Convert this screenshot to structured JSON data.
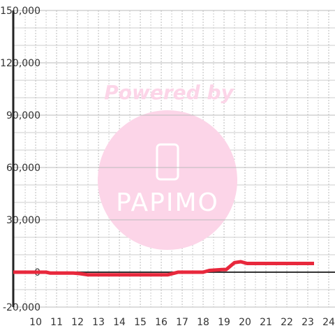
{
  "chart_data": {
    "type": "line",
    "annotations": [
      "Powered by",
      "PAPIMO"
    ],
    "xlim": [
      8.93,
      24.3
    ],
    "xticks": [
      10,
      11,
      12,
      13,
      14,
      15,
      16,
      17,
      18,
      19,
      20,
      21,
      22,
      23,
      24
    ],
    "xminor_ticks": [
      9.5,
      10.5,
      11.5,
      12.5,
      13.5,
      14.5,
      15.5,
      16.5,
      17.5,
      18.5,
      19.5,
      20.5,
      21.5,
      22.5,
      23.5
    ],
    "ylim": [
      -20000,
      150000
    ],
    "yticks": [
      {
        "value": -20000,
        "label": "-20,000"
      },
      0,
      {
        "value": 30000,
        "label": "30,000"
      },
      {
        "value": 60000,
        "label": "60,000"
      },
      {
        "value": 90000,
        "label": "90,000"
      },
      {
        "value": 120000,
        "label": "120,000"
      },
      {
        "value": 150000,
        "label": "150,000"
      }
    ],
    "yminor_ticks": [
      -10000,
      10000,
      20000,
      40000,
      50000,
      70000,
      80000,
      100000,
      110000,
      130000,
      140000
    ],
    "grid": true,
    "series": [
      {
        "color": "#e8283c",
        "x": [
          8.93,
          10.5,
          10.7,
          11.8,
          12.1,
          12.5,
          16.3,
          16.8,
          18,
          18.3,
          18.9,
          19.1,
          19.5,
          19.8,
          20.1,
          23.3
        ],
        "values": [
          0,
          0,
          -500,
          -500,
          -800,
          -1500,
          -1500,
          0,
          0,
          1000,
          1500,
          1500,
          5500,
          6000,
          5000,
          5000
        ]
      }
    ]
  }
}
